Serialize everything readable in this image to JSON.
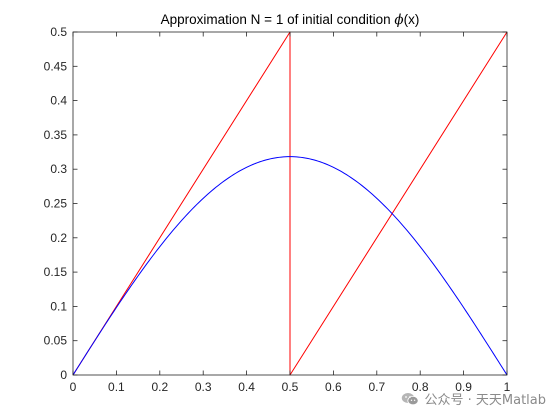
{
  "chart_data": {
    "type": "line",
    "title_prefix": "Approximation N = 1 of initial condition ",
    "title_symbol": "ϕ",
    "title_suffix": "(x)",
    "xlabel": "",
    "ylabel": "",
    "xlim": [
      0,
      1
    ],
    "ylim": [
      0,
      0.5
    ],
    "xticks": [
      0,
      0.1,
      0.2,
      0.3,
      0.4,
      0.5,
      0.6,
      0.7,
      0.8,
      0.9,
      1
    ],
    "xtick_labels": [
      "0",
      "0.1",
      "0.2",
      "0.3",
      "0.4",
      "0.5",
      "0.6",
      "0.7",
      "0.8",
      "0.9",
      "1"
    ],
    "yticks": [
      0,
      0.05,
      0.1,
      0.15,
      0.2,
      0.25,
      0.3,
      0.35,
      0.4,
      0.45,
      0.5
    ],
    "ytick_labels": [
      "0",
      "0.05",
      "0.1",
      "0.15",
      "0.2",
      "0.25",
      "0.3",
      "0.35",
      "0.4",
      "0.45",
      "0.5"
    ],
    "grid": false,
    "box": true,
    "series": [
      {
        "color": "#ff0000",
        "x": [
          0,
          0.5,
          0.5,
          1
        ],
        "y": [
          0,
          0.5,
          0,
          0.5
        ]
      },
      {
        "color": "#0000ff",
        "x": [
          0,
          0.05,
          0.1,
          0.15,
          0.2,
          0.25,
          0.3,
          0.35,
          0.4,
          0.45,
          0.5,
          0.55,
          0.6,
          0.65,
          0.7,
          0.75,
          0.8,
          0.85,
          0.9,
          0.95,
          1
        ],
        "y": [
          0,
          0.0498,
          0.0984,
          0.1445,
          0.1871,
          0.2251,
          0.2575,
          0.2836,
          0.3027,
          0.3144,
          0.3183,
          0.3144,
          0.3027,
          0.2836,
          0.2575,
          0.2251,
          0.1871,
          0.1445,
          0.0984,
          0.0498,
          0
        ]
      }
    ]
  },
  "watermark": {
    "text": "公众号 · 天天Matlab",
    "icon": "wechat-icon",
    "color": "#8a8a8a"
  }
}
